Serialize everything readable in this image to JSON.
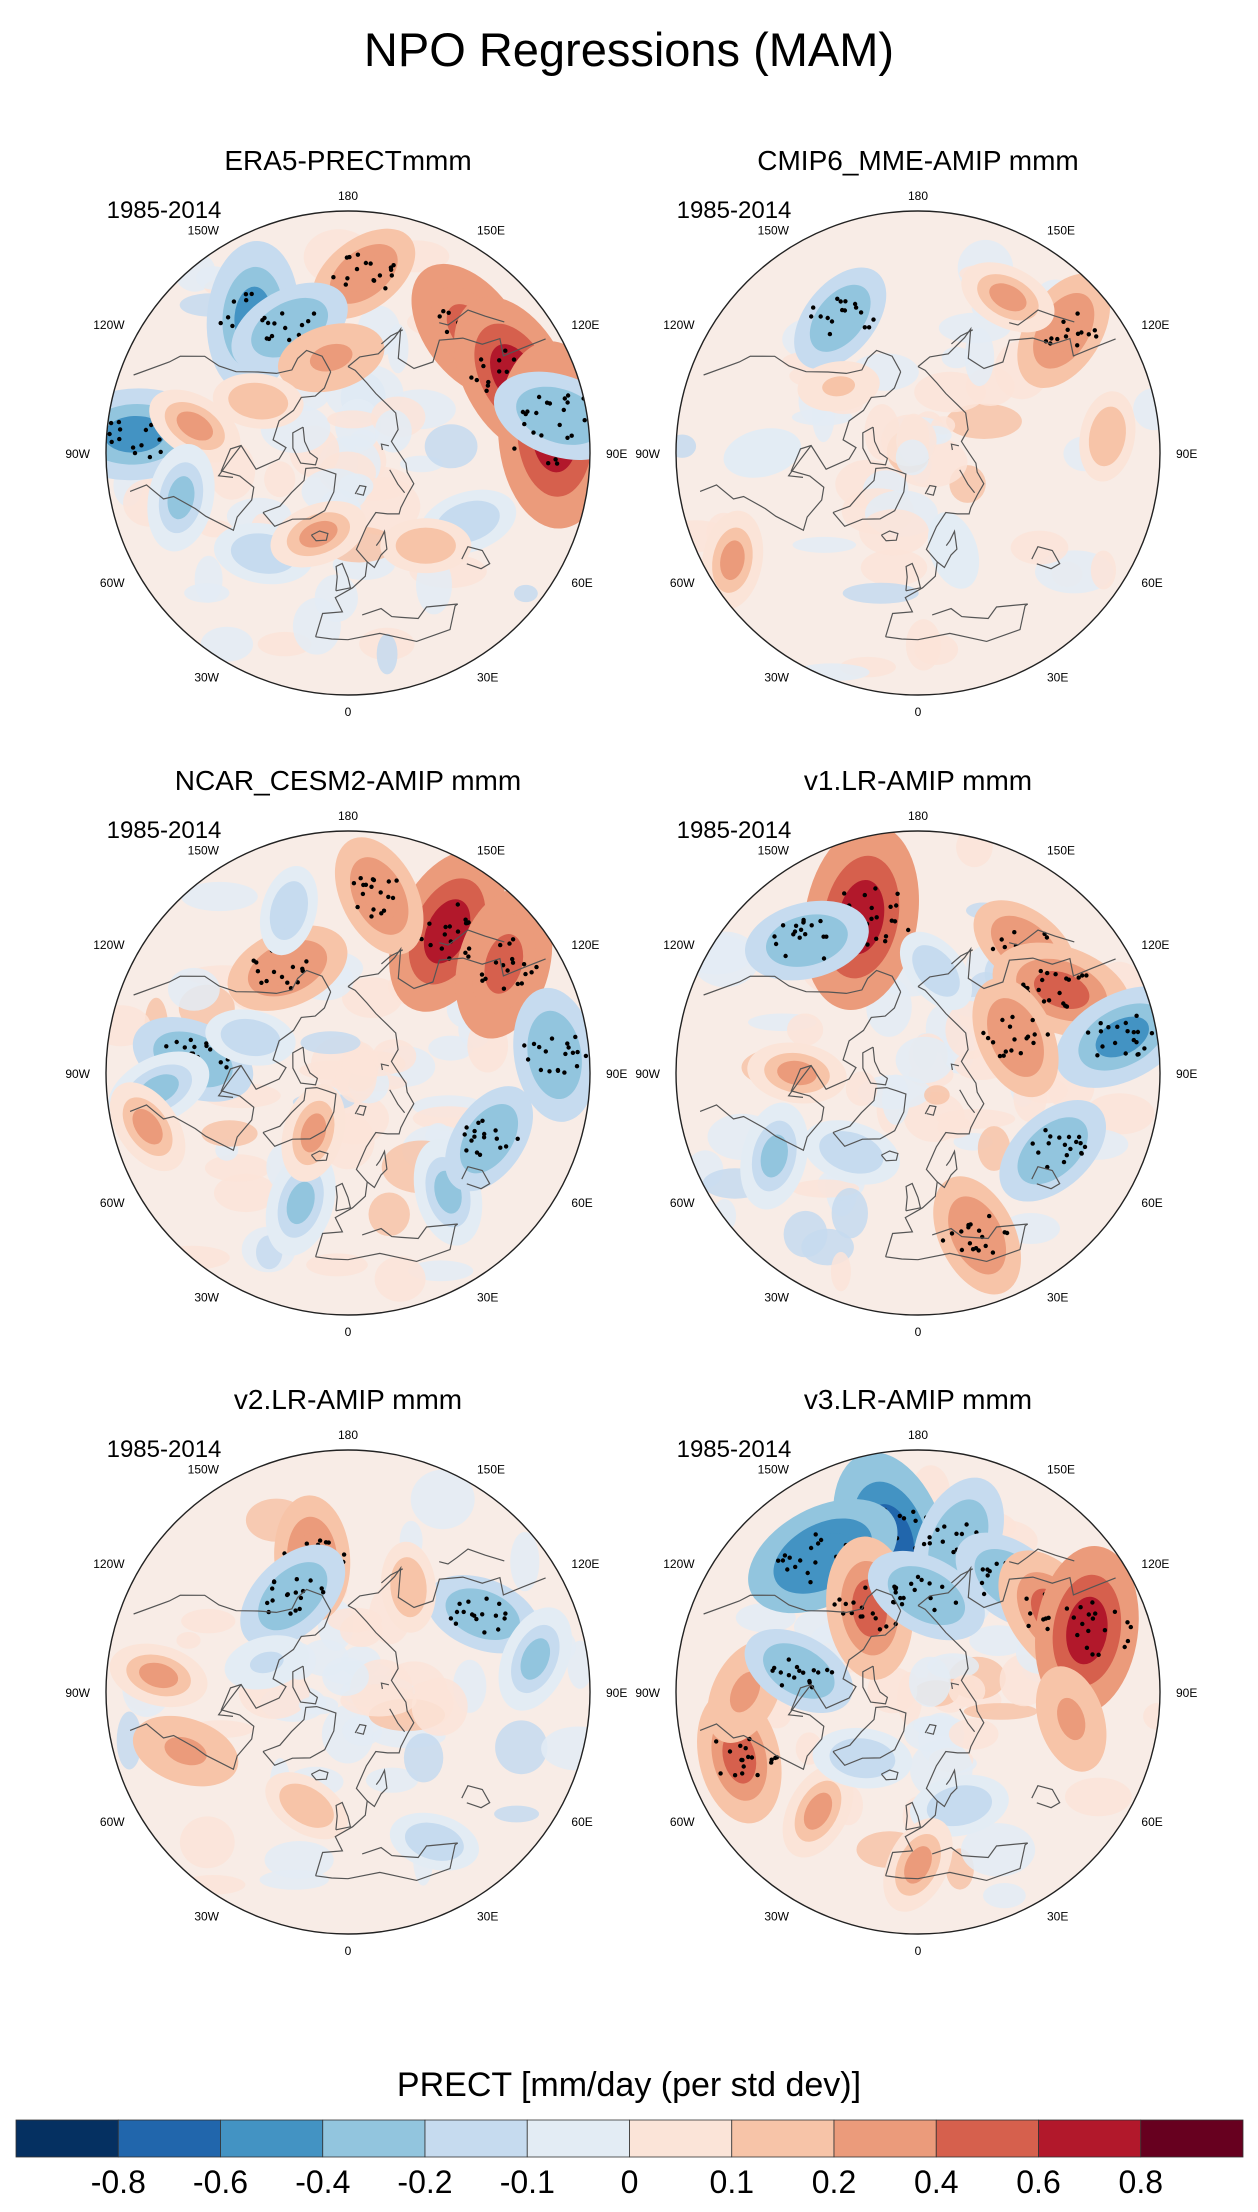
{
  "title": "NPO Regressions (MAM)",
  "panels": [
    {
      "name": "ERA5-PRECTmmm",
      "period": "1985-2014"
    },
    {
      "name": "CMIP6_MME-AMIP  mmm",
      "period": "1985-2014"
    },
    {
      "name": "NCAR_CESM2-AMIP  mmm",
      "period": "1985-2014"
    },
    {
      "name": "v1.LR-AMIP  mmm",
      "period": "1985-2014"
    },
    {
      "name": "v2.LR-AMIP  mmm",
      "period": "1985-2014"
    },
    {
      "name": "v3.LR-AMIP  mmm",
      "period": "1985-2014"
    }
  ],
  "longitude_labels": [
    "180",
    "150E",
    "120E",
    "90E",
    "60E",
    "30E",
    "0",
    "30W",
    "60W",
    "90W",
    "120W",
    "150W"
  ],
  "colorbar": {
    "title": "PRECT [mm/day (per std dev)]",
    "ticks": [
      "-0.8",
      "-0.6",
      "-0.4",
      "-0.2",
      "-0.1",
      "0",
      "0.1",
      "0.2",
      "0.4",
      "0.6",
      "0.8"
    ],
    "colors": [
      "#053061",
      "#2166ac",
      "#4393c3",
      "#92c5de",
      "#c6dbef",
      "#e3ecf4",
      "#fbe4d8",
      "#f7c4a8",
      "#eb9b7b",
      "#d6604d",
      "#b2182b",
      "#67001f"
    ]
  },
  "patterns": [
    [
      {
        "lon": 175,
        "lat": 38,
        "v": 0.3
      },
      {
        "lon": 135,
        "lat": 40,
        "v": 0.5
      },
      {
        "lon": 115,
        "lat": 37,
        "v": 0.6
      },
      {
        "lon": 95,
        "lat": 30,
        "v": 0.7
      },
      {
        "lon": 100,
        "lat": 28,
        "v": -0.4
      },
      {
        "lon": -145,
        "lat": 42,
        "v": -0.5
      },
      {
        "lon": -155,
        "lat": 50,
        "v": -0.35
      },
      {
        "lon": -95,
        "lat": 28,
        "v": -0.5
      },
      {
        "lon": -100,
        "lat": 45,
        "v": 0.2
      },
      {
        "lon": -170,
        "lat": 62,
        "v": 0.25
      },
      {
        "lon": -75,
        "lat": 40,
        "v": -0.25
      },
      {
        "lon": -40,
        "lat": 52,
        "v": -0.2
      },
      {
        "lon": 60,
        "lat": 50,
        "v": -0.2
      },
      {
        "lon": 40,
        "lat": 55,
        "v": 0.15
      },
      {
        "lon": -20,
        "lat": 65,
        "v": 0.2
      },
      {
        "lon": -120,
        "lat": 60,
        "v": 0.15
      }
    ],
    [
      {
        "lon": -150,
        "lat": 45,
        "v": -0.3
      },
      {
        "lon": 130,
        "lat": 35,
        "v": 0.35
      },
      {
        "lon": 150,
        "lat": 38,
        "v": 0.2
      },
      {
        "lon": -60,
        "lat": 28,
        "v": 0.2
      },
      {
        "lon": 95,
        "lat": 35,
        "v": 0.15
      },
      {
        "lon": -130,
        "lat": 60,
        "v": 0.1
      },
      {
        "lon": -90,
        "lat": 45,
        "v": -0.08
      },
      {
        "lon": 20,
        "lat": 60,
        "v": -0.08
      }
    ],
    [
      {
        "lon": 145,
        "lat": 40,
        "v": 0.6
      },
      {
        "lon": 125,
        "lat": 35,
        "v": 0.5
      },
      {
        "lon": 170,
        "lat": 38,
        "v": 0.35
      },
      {
        "lon": -150,
        "lat": 55,
        "v": 0.35
      },
      {
        "lon": -95,
        "lat": 45,
        "v": -0.35
      },
      {
        "lon": -85,
        "lat": 35,
        "v": -0.25
      },
      {
        "lon": -110,
        "lat": 60,
        "v": -0.15
      },
      {
        "lon": -20,
        "lat": 50,
        "v": -0.25
      },
      {
        "lon": 40,
        "lat": 45,
        "v": -0.25
      },
      {
        "lon": 65,
        "lat": 45,
        "v": -0.3
      },
      {
        "lon": 95,
        "lat": 30,
        "v": -0.4
      },
      {
        "lon": -75,
        "lat": 30,
        "v": 0.2
      },
      {
        "lon": -160,
        "lat": 40,
        "v": -0.15
      },
      {
        "lon": -30,
        "lat": 70,
        "v": 0.2
      }
    ],
    [
      {
        "lon": -160,
        "lat": 42,
        "v": 0.7
      },
      {
        "lon": -140,
        "lat": 40,
        "v": -0.35
      },
      {
        "lon": 140,
        "lat": 42,
        "v": 0.3
      },
      {
        "lon": 120,
        "lat": 42,
        "v": 0.45
      },
      {
        "lon": 100,
        "lat": 30,
        "v": -0.45
      },
      {
        "lon": 110,
        "lat": 60,
        "v": 0.35
      },
      {
        "lon": 20,
        "lat": 40,
        "v": 0.35
      },
      {
        "lon": 60,
        "lat": 45,
        "v": -0.35
      },
      {
        "lon": -60,
        "lat": 42,
        "v": -0.25
      },
      {
        "lon": -90,
        "lat": 55,
        "v": 0.2
      },
      {
        "lon": -40,
        "lat": 60,
        "v": -0.2
      },
      {
        "lon": 170,
        "lat": 60,
        "v": -0.15
      }
    ],
    [
      {
        "lon": -165,
        "lat": 50,
        "v": 0.35
      },
      {
        "lon": -150,
        "lat": 58,
        "v": -0.35
      },
      {
        "lon": 120,
        "lat": 45,
        "v": -0.3
      },
      {
        "lon": 100,
        "lat": 35,
        "v": -0.25
      },
      {
        "lon": -70,
        "lat": 40,
        "v": 0.25
      },
      {
        "lon": -95,
        "lat": 35,
        "v": 0.2
      },
      {
        "lon": -20,
        "lat": 55,
        "v": 0.15
      },
      {
        "lon": 30,
        "lat": 40,
        "v": -0.15
      },
      {
        "lon": 150,
        "lat": 55,
        "v": 0.15
      },
      {
        "lon": -110,
        "lat": 65,
        "v": -0.12
      }
    ],
    [
      {
        "lon": -170,
        "lat": 45,
        "v": -0.65
      },
      {
        "lon": -145,
        "lat": 42,
        "v": -0.55
      },
      {
        "lon": 165,
        "lat": 45,
        "v": -0.4
      },
      {
        "lon": 140,
        "lat": 48,
        "v": -0.35
      },
      {
        "lon": -150,
        "lat": 62,
        "v": 0.45
      },
      {
        "lon": 120,
        "lat": 45,
        "v": 0.45
      },
      {
        "lon": 110,
        "lat": 38,
        "v": 0.6
      },
      {
        "lon": 175,
        "lat": 62,
        "v": -0.35
      },
      {
        "lon": -70,
        "lat": 35,
        "v": 0.4
      },
      {
        "lon": -90,
        "lat": 40,
        "v": 0.25
      },
      {
        "lon": -40,
        "lat": 45,
        "v": 0.2
      },
      {
        "lon": -100,
        "lat": 55,
        "v": -0.3
      },
      {
        "lon": -40,
        "lat": 65,
        "v": -0.2
      },
      {
        "lon": 80,
        "lat": 45,
        "v": 0.25
      },
      {
        "lon": 20,
        "lat": 55,
        "v": -0.2
      },
      {
        "lon": 0,
        "lat": 40,
        "v": 0.2
      }
    ]
  ]
}
